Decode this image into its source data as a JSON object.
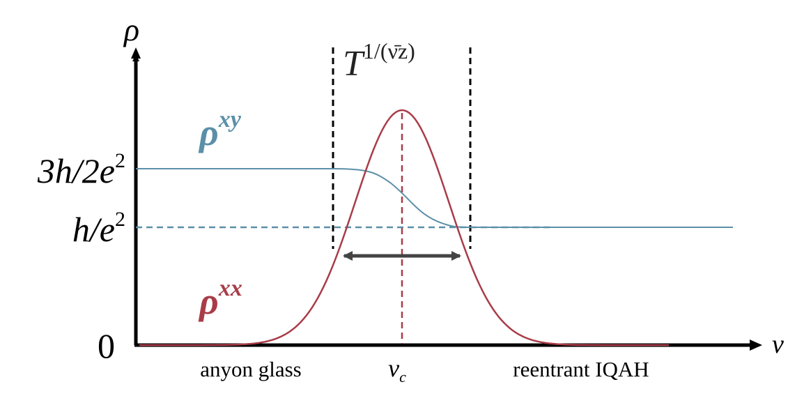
{
  "axes": {
    "y_label": "ρ",
    "x_label": "ν"
  },
  "y_labels": [
    {
      "text": "3h/2e",
      "sup": "2"
    },
    {
      "text": "h/e",
      "sup": "2"
    },
    {
      "text": "0"
    }
  ],
  "curves": [
    {
      "base": "ρ",
      "sup": "xy"
    },
    {
      "base": "ρ",
      "sup": "xx"
    }
  ],
  "scaling": {
    "base": "T",
    "sup": "1/(ν̄z)"
  },
  "x_labels": {
    "left": "anyon glass",
    "center": {
      "base": "ν",
      "sub": "c"
    },
    "right": "reentrant IQAH"
  }
}
